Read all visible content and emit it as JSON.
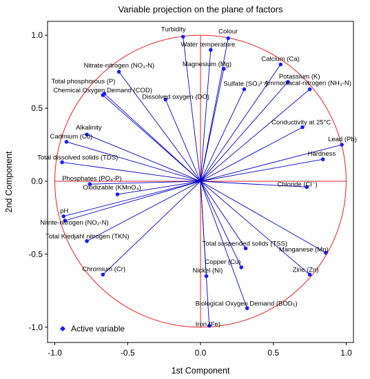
{
  "chart_data": {
    "type": "scatter",
    "title": "Variable projection on the plane of factors",
    "xlabel": "1st Component",
    "ylabel": "2nd Component",
    "xlim": [
      -1.0,
      1.0
    ],
    "ylim": [
      -1.0,
      1.0
    ],
    "x_ticks": [
      "-1.0",
      "-0.5",
      "0.0",
      "0.5",
      "1.0"
    ],
    "y_ticks": [
      "1.0",
      "0.5",
      "0.0",
      "-0.5",
      "-1.0"
    ],
    "legend": {
      "label": "Active variable",
      "position": "bottom-left"
    },
    "unit_circle": true,
    "colors": {
      "vector": "#0000cc",
      "point": "#1a1aff",
      "circle": "#e02020",
      "axis_line": "#e02020"
    },
    "points": [
      {
        "label": "Turbidity",
        "x": -0.12,
        "y": 0.99
      },
      {
        "label": "Colour",
        "x": 0.19,
        "y": 0.98
      },
      {
        "label": "Water temperature",
        "x": 0.07,
        "y": 0.9
      },
      {
        "label": "Magnesium (Mg)",
        "x": 0.16,
        "y": 0.77
      },
      {
        "label": "Calcium (Ca)",
        "x": 0.55,
        "y": 0.8
      },
      {
        "label": "Potassium (K)",
        "x": 0.6,
        "y": 0.68
      },
      {
        "label": "Ammoniacal-nitrogen (NH₃-N)",
        "x": 0.75,
        "y": 0.63
      },
      {
        "label": "Sulfate (SO₄²⁻)",
        "x": 0.3,
        "y": 0.63
      },
      {
        "label": "Nitrate-nitrogen (NO₃-N)",
        "x": -0.56,
        "y": 0.75
      },
      {
        "label": "Total phosphorous (P)",
        "x": -0.66,
        "y": 0.6
      },
      {
        "label": "Chemical Oxygen Demand (COD)",
        "x": -0.67,
        "y": 0.59
      },
      {
        "label": "Dissolved oxygen (DO)",
        "x": -0.24,
        "y": 0.56
      },
      {
        "label": "Conductivity at 25°C",
        "x": 0.7,
        "y": 0.37
      },
      {
        "label": "Alkalinity",
        "x": -0.78,
        "y": 0.32
      },
      {
        "label": "Cadmium (Cd)",
        "x": -0.92,
        "y": 0.27
      },
      {
        "label": "Lead (Pb)",
        "x": 0.97,
        "y": 0.25
      },
      {
        "label": "Hardness",
        "x": 0.84,
        "y": 0.15
      },
      {
        "label": "Total dissolved solids (TDS)",
        "x": -0.95,
        "y": 0.13
      },
      {
        "label": "Phosphates (PO₄-P)",
        "x": -0.76,
        "y": -0.02
      },
      {
        "label": "Oxidizable (KMnO₄)",
        "x": -0.57,
        "y": -0.09
      },
      {
        "label": "Chloride (Cl⁻)",
        "x": 0.73,
        "y": -0.04
      },
      {
        "label": "pH",
        "x": -0.94,
        "y": -0.24
      },
      {
        "label": "Nitrite-nitrogen (NO₂-N)",
        "x": -0.93,
        "y": -0.27
      },
      {
        "label": "Total Kiedjahl nitrogen (TKN)",
        "x": -0.78,
        "y": -0.41
      },
      {
        "label": "Total suspended solids (TSS)",
        "x": 0.31,
        "y": -0.46
      },
      {
        "label": "Manganese (Mn)",
        "x": 0.86,
        "y": -0.49
      },
      {
        "label": "Copper (Cu)",
        "x": 0.28,
        "y": -0.59
      },
      {
        "label": "Chromium (Cr)",
        "x": -0.67,
        "y": -0.64
      },
      {
        "label": "Zinc (Zn)",
        "x": 0.75,
        "y": -0.64
      },
      {
        "label": "Nickel (Ni)",
        "x": 0.04,
        "y": -0.65
      },
      {
        "label": "Biological Oxygen Demand (BOD₅)",
        "x": 0.32,
        "y": -0.87
      },
      {
        "label": "Iron (Fe)",
        "x": 0.06,
        "y": -0.99
      }
    ]
  }
}
